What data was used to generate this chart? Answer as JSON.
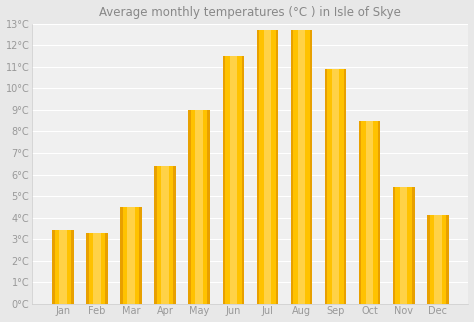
{
  "title": "Average monthly temperatures (°C ) in Isle of Skye",
  "months": [
    "Jan",
    "Feb",
    "Mar",
    "Apr",
    "May",
    "Jun",
    "Jul",
    "Aug",
    "Sep",
    "Oct",
    "Nov",
    "Dec"
  ],
  "values": [
    3.4,
    3.3,
    4.5,
    6.4,
    9.0,
    11.5,
    12.7,
    12.7,
    10.9,
    8.5,
    5.4,
    4.1
  ],
  "bar_color_light": "#FFD966",
  "bar_color_dark": "#E8A000",
  "bar_color_mid": "#FFC200",
  "background_color": "#e8e8e8",
  "plot_bg_color": "#f0f0f0",
  "grid_color": "#ffffff",
  "title_fontsize": 8.5,
  "tick_fontsize": 7,
  "ylim": [
    0,
    13
  ],
  "yticks": [
    0,
    1,
    2,
    3,
    4,
    5,
    6,
    7,
    8,
    9,
    10,
    11,
    12,
    13
  ],
  "ylabel_suffix": "°C",
  "title_color": "#888888",
  "tick_color": "#999999"
}
